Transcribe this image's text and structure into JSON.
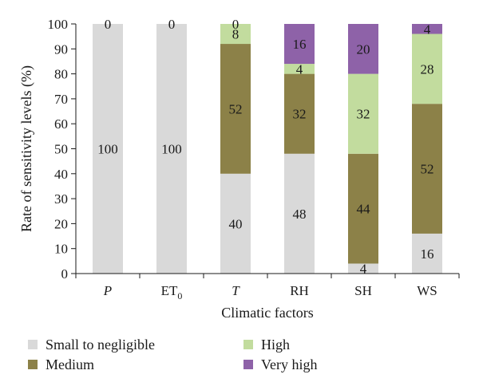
{
  "chart_data": {
    "type": "bar",
    "stacked": true,
    "categories": [
      {
        "main": "P",
        "sub": "",
        "italic": true
      },
      {
        "main": "ET",
        "sub": "0",
        "italic": false
      },
      {
        "main": "T",
        "sub": "",
        "italic": true
      },
      {
        "main": "RH",
        "sub": "",
        "italic": false
      },
      {
        "main": "SH",
        "sub": "",
        "italic": false
      },
      {
        "main": "WS",
        "sub": "",
        "italic": false
      }
    ],
    "series": [
      {
        "name": "Small to negligible",
        "color": "#d9d9d9",
        "values": [
          100,
          100,
          40,
          48,
          4,
          16
        ]
      },
      {
        "name": "Medium",
        "color": "#8c8148",
        "values": [
          0,
          0,
          52,
          32,
          44,
          52
        ]
      },
      {
        "name": "High",
        "color": "#c2dc9e",
        "values": [
          0,
          0,
          8,
          4,
          32,
          28
        ]
      },
      {
        "name": "Very high",
        "color": "#8e62a8",
        "values": [
          0,
          0,
          0,
          16,
          20,
          4
        ]
      }
    ],
    "data_labels": [
      {
        "category": 0,
        "text": "100",
        "at": 50
      },
      {
        "category": 0,
        "text": "0",
        "at": 100
      },
      {
        "category": 1,
        "text": "100",
        "at": 50
      },
      {
        "category": 1,
        "text": "0",
        "at": 100
      },
      {
        "category": 2,
        "text": "40",
        "at": 20
      },
      {
        "category": 2,
        "text": "52",
        "at": 66
      },
      {
        "category": 2,
        "text": "8",
        "at": 96
      },
      {
        "category": 2,
        "text": "0",
        "at": 100
      },
      {
        "category": 3,
        "text": "48",
        "at": 24
      },
      {
        "category": 3,
        "text": "32",
        "at": 64
      },
      {
        "category": 3,
        "text": "4",
        "at": 82
      },
      {
        "category": 3,
        "text": "16",
        "at": 92
      },
      {
        "category": 4,
        "text": "4",
        "at": 2
      },
      {
        "category": 4,
        "text": "44",
        "at": 26
      },
      {
        "category": 4,
        "text": "32",
        "at": 64
      },
      {
        "category": 4,
        "text": "20",
        "at": 90
      },
      {
        "category": 5,
        "text": "16",
        "at": 8
      },
      {
        "category": 5,
        "text": "52",
        "at": 42
      },
      {
        "category": 5,
        "text": "28",
        "at": 82
      },
      {
        "category": 5,
        "text": "4",
        "at": 98
      }
    ],
    "ylim": [
      0,
      100
    ],
    "yticks": [
      0,
      10,
      20,
      30,
      40,
      50,
      60,
      70,
      80,
      90,
      100
    ],
    "ylabel": "Rate of sensitivity levels (%)",
    "xlabel": "Climatic factors",
    "grid": false,
    "legend": {
      "position": "bottom",
      "order": [
        "Small to negligible",
        "High",
        "Medium",
        "Very high"
      ]
    }
  }
}
